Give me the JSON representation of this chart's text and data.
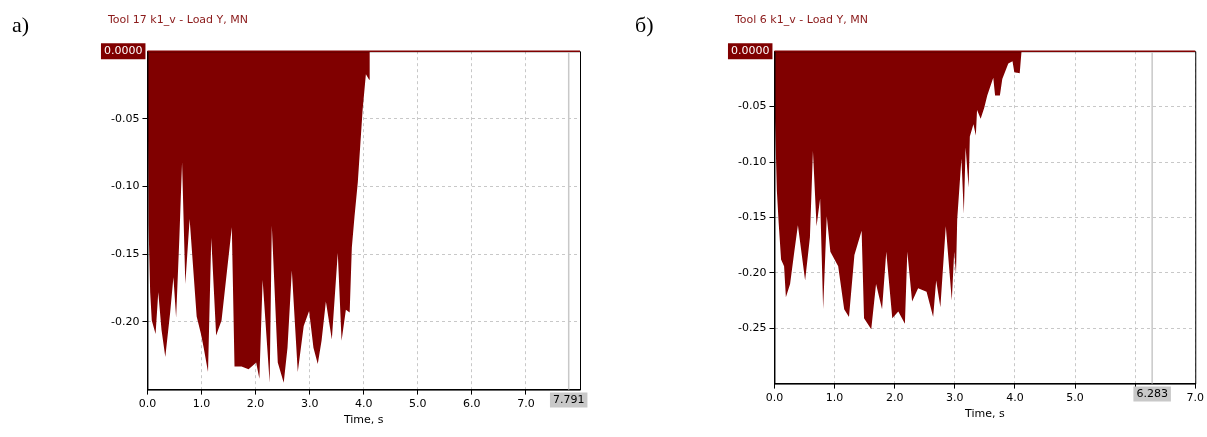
{
  "chart_data": [
    {
      "type": "area",
      "title": "Tool 17 k1_v - Load Y, MN",
      "xlabel": "Time, s",
      "annotations": [
        "а)"
      ],
      "color": "#800000",
      "grid": true,
      "x": [
        0,
        0.02,
        0.05,
        0.08,
        0.15,
        0.2,
        0.26,
        0.33,
        0.42,
        0.48,
        0.53,
        0.59,
        0.64,
        0.7,
        0.78,
        0.91,
        0.99,
        1.04,
        1.12,
        1.18,
        1.27,
        1.37,
        1.56,
        1.61,
        1.74,
        1.87,
        2.01,
        2.07,
        2.13,
        2.26,
        2.3,
        2.41,
        2.52,
        2.59,
        2.67,
        2.78,
        2.89,
        2.99,
        3.07,
        3.15,
        3.22,
        3.3,
        3.41,
        3.52,
        3.59,
        3.67,
        3.74,
        3.78,
        3.83,
        3.89,
        3.94,
        3.98,
        4.04,
        4.1,
        4.11,
        7.791
      ],
      "values": [
        0,
        -0.128,
        -0.178,
        -0.199,
        -0.209,
        -0.178,
        -0.206,
        -0.226,
        -0.193,
        -0.167,
        -0.197,
        -0.138,
        -0.082,
        -0.172,
        -0.124,
        -0.196,
        -0.209,
        -0.219,
        -0.237,
        -0.138,
        -0.21,
        -0.199,
        -0.13,
        -0.233,
        -0.233,
        -0.235,
        -0.23,
        -0.242,
        -0.169,
        -0.245,
        -0.129,
        -0.23,
        -0.245,
        -0.219,
        -0.162,
        -0.237,
        -0.203,
        -0.192,
        -0.219,
        -0.231,
        -0.214,
        -0.185,
        -0.213,
        -0.149,
        -0.214,
        -0.191,
        -0.193,
        -0.145,
        -0.122,
        -0.097,
        -0.067,
        -0.043,
        -0.017,
        -0.021,
        0,
        0
      ],
      "xlim": [
        0,
        8
      ],
      "ylim": [
        -0.25,
        0
      ],
      "xticks": [
        {
          "value": 0,
          "label": "0.0"
        },
        {
          "value": 1,
          "label": "1.0"
        },
        {
          "value": 2,
          "label": "2.0"
        },
        {
          "value": 3,
          "label": "3.0"
        },
        {
          "value": 4,
          "label": "4.0"
        },
        {
          "value": 5,
          "label": "5.0"
        },
        {
          "value": 6,
          "label": "6.0"
        },
        {
          "value": 7,
          "label": "7.0"
        }
      ],
      "yticks": [
        {
          "value": -0.05,
          "label": "-0.05"
        },
        {
          "value": -0.1,
          "label": "-0.10"
        },
        {
          "value": -0.15,
          "label": "-0.15"
        },
        {
          "value": -0.2,
          "label": "-0.20"
        }
      ],
      "ref_lines": [
        {
          "axis": "x",
          "value": 7.791,
          "label": "7.791",
          "color": "#c8c8c8"
        },
        {
          "axis": "y",
          "value": 0,
          "label": "0.0000",
          "color": "#800000"
        }
      ]
    },
    {
      "type": "area",
      "title": "Tool 6 k1_v - Load Y, MN",
      "xlabel": "Time, s",
      "annotations": [
        "б)"
      ],
      "color": "#800000",
      "grid": true,
      "x": [
        0,
        0.01,
        0.04,
        0.07,
        0.11,
        0.16,
        0.19,
        0.26,
        0.33,
        0.39,
        0.51,
        0.59,
        0.64,
        0.7,
        0.76,
        0.81,
        0.87,
        0.93,
        1.06,
        1.16,
        1.24,
        1.33,
        1.45,
        1.49,
        1.61,
        1.69,
        1.79,
        1.86,
        1.96,
        2.06,
        2.17,
        2.21,
        2.29,
        2.39,
        2.53,
        2.64,
        2.69,
        2.76,
        2.85,
        2.95,
        2.99,
        3.02,
        3.04,
        3.11,
        3.15,
        3.18,
        3.23,
        3.25,
        3.31,
        3.35,
        3.37,
        3.43,
        3.49,
        3.54,
        3.64,
        3.67,
        3.75,
        3.79,
        3.89,
        3.96,
        3.99,
        4.08,
        4.11,
        6.283
      ],
      "values": [
        0,
        -0.064,
        -0.126,
        -0.155,
        -0.188,
        -0.194,
        -0.222,
        -0.21,
        -0.181,
        -0.157,
        -0.207,
        -0.168,
        -0.09,
        -0.158,
        -0.133,
        -0.233,
        -0.149,
        -0.181,
        -0.194,
        -0.233,
        -0.24,
        -0.184,
        -0.162,
        -0.241,
        -0.251,
        -0.21,
        -0.233,
        -0.181,
        -0.241,
        -0.235,
        -0.246,
        -0.181,
        -0.226,
        -0.214,
        -0.217,
        -0.24,
        -0.207,
        -0.231,
        -0.158,
        -0.225,
        -0.181,
        -0.201,
        -0.152,
        -0.097,
        -0.147,
        -0.087,
        -0.123,
        -0.077,
        -0.066,
        -0.076,
        -0.053,
        -0.061,
        -0.051,
        -0.04,
        -0.024,
        -0.04,
        -0.04,
        -0.025,
        -0.011,
        -0.009,
        -0.019,
        -0.02,
        0,
        0
      ],
      "xlim": [
        0,
        7
      ],
      "ylim": [
        -0.3,
        0
      ],
      "xticks": [
        {
          "value": 0,
          "label": "0.0"
        },
        {
          "value": 1,
          "label": "1.0"
        },
        {
          "value": 2,
          "label": "2.0"
        },
        {
          "value": 3,
          "label": "3.0"
        },
        {
          "value": 4,
          "label": "4.0"
        },
        {
          "value": 5,
          "label": "5.0"
        },
        {
          "value": 6,
          "label": null
        },
        {
          "value": 7,
          "label": "7.0"
        }
      ],
      "yticks": [
        {
          "value": -0.05,
          "label": "-0.05"
        },
        {
          "value": -0.1,
          "label": "-0.10"
        },
        {
          "value": -0.15,
          "label": "-0.15"
        },
        {
          "value": -0.2,
          "label": "-0.20"
        },
        {
          "value": -0.25,
          "label": "-0.25"
        }
      ],
      "ref_lines": [
        {
          "axis": "x",
          "value": 6.283,
          "label": "6.283",
          "color": "#c8c8c8"
        },
        {
          "axis": "y",
          "value": 0,
          "label": "0.0000",
          "color": "#800000"
        }
      ]
    }
  ]
}
